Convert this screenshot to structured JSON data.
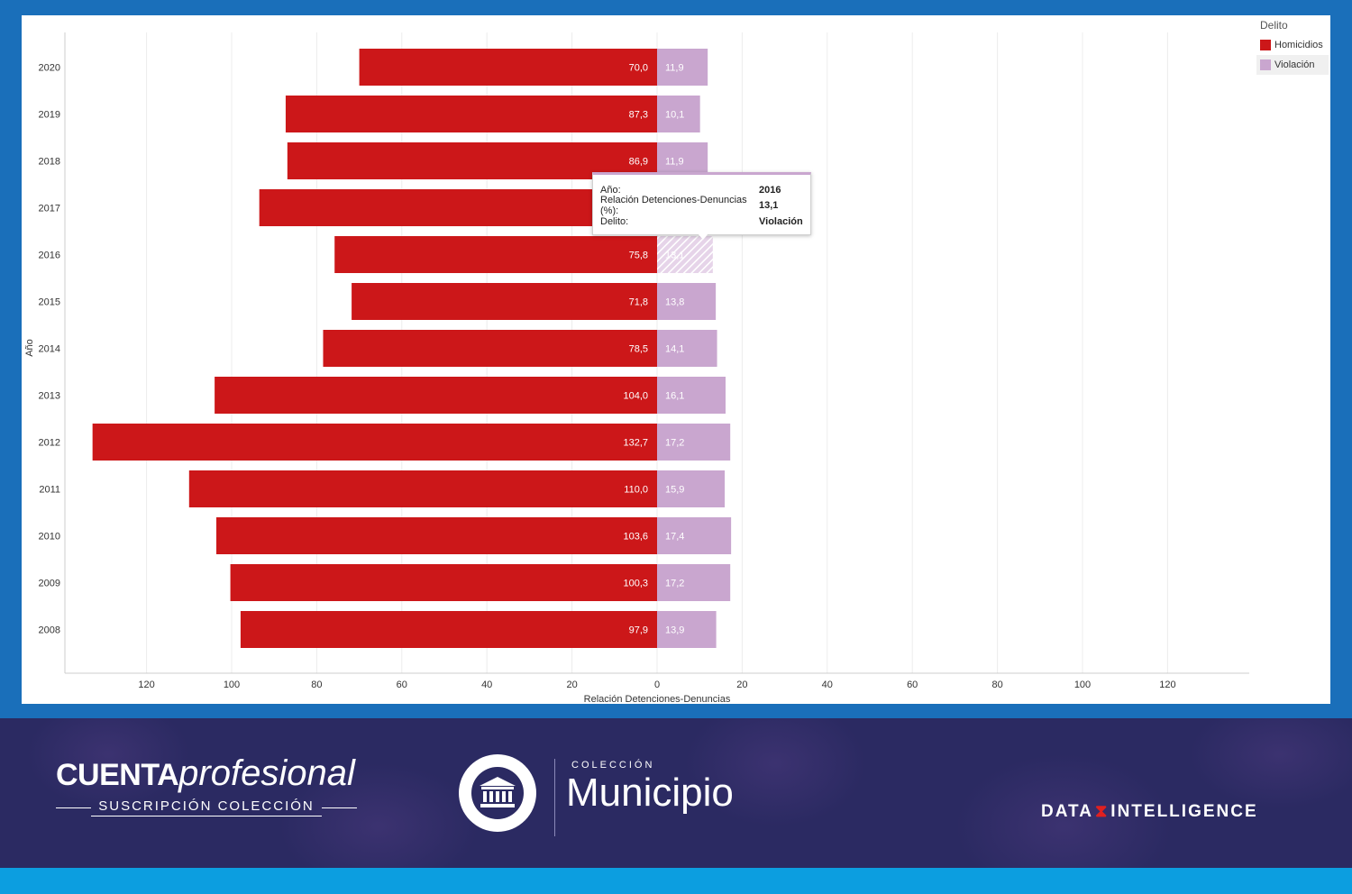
{
  "chart_data": {
    "type": "bar",
    "orientation": "horizontal-diverging",
    "categories": [
      "2020",
      "2019",
      "2018",
      "2017",
      "2016",
      "2015",
      "2014",
      "2013",
      "2012",
      "2011",
      "2010",
      "2009",
      "2008"
    ],
    "series": [
      {
        "name": "Homicidios",
        "color": "#cc1719",
        "values": [
          70.0,
          87.3,
          86.9,
          93.5,
          75.8,
          71.8,
          78.5,
          104.0,
          132.7,
          110.0,
          103.6,
          100.3,
          97.9
        ],
        "labels": [
          "70,0",
          "87,3",
          "86,9",
          "",
          "75,8",
          "71,8",
          "78,5",
          "104,0",
          "132,7",
          "110,0",
          "103,6",
          "100,3",
          "97,9"
        ]
      },
      {
        "name": "Violación",
        "color": "#c9a6cf",
        "values": [
          11.9,
          10.1,
          11.9,
          12.5,
          13.1,
          13.8,
          14.1,
          16.1,
          17.2,
          15.9,
          17.4,
          17.2,
          13.9
        ],
        "labels": [
          "11,9",
          "10,1",
          "11,9",
          "",
          "13,1",
          "13,8",
          "14,1",
          "16,1",
          "17,2",
          "15,9",
          "17,4",
          "17,2",
          "13,9"
        ]
      }
    ],
    "xticks": [
      "120",
      "100",
      "80",
      "60",
      "40",
      "20",
      "0",
      "20",
      "40",
      "60",
      "80",
      "100",
      "120"
    ],
    "xlabel": "Relación Detenciones-Denuncias",
    "ylabel": "Año",
    "xlim": [
      -140,
      140
    ],
    "grid": true,
    "legend": {
      "title": "Delito",
      "position": "top-right"
    },
    "highlighted": {
      "category": "2016",
      "series": "Violación"
    }
  },
  "tooltip": {
    "rows": [
      {
        "key": "Año:",
        "value": "2016"
      },
      {
        "key": "Relación Detenciones-Denuncias (%):",
        "value": "13,1"
      },
      {
        "key": "Delito:",
        "value": "Violación"
      }
    ]
  },
  "footer": {
    "brand_strong": "CUENTA",
    "brand_light": "profesional",
    "brand_sub": "SUSCRIPCIÓN COLECCIÓN",
    "collection_label": "COLECCIÓN",
    "collection_name": "Municipio",
    "company_part1": "DATA",
    "company_part2": "INTELLIGENCE"
  }
}
